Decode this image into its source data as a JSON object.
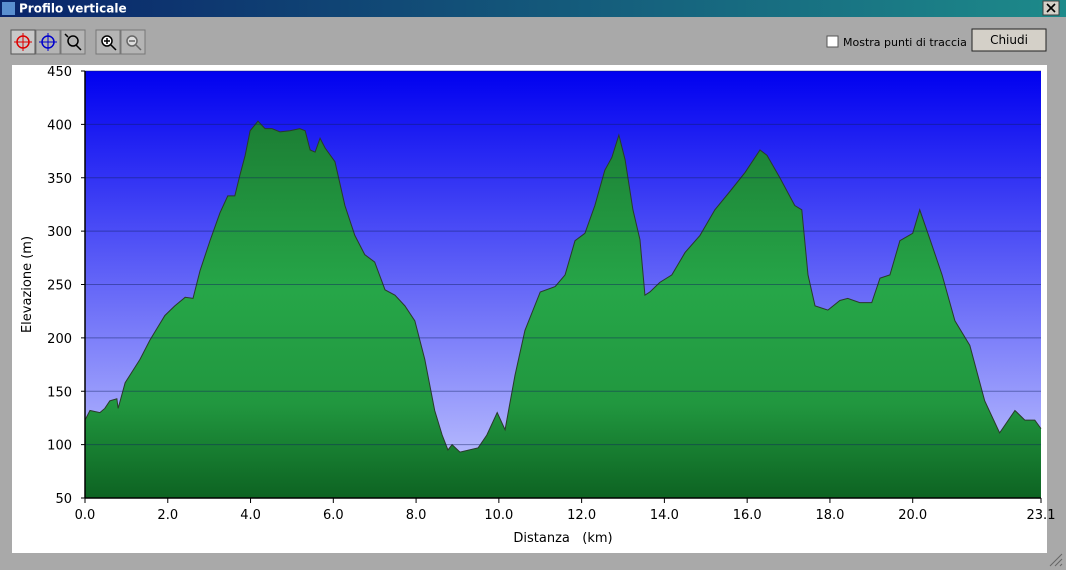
{
  "window": {
    "title": "Profilo verticale",
    "checkbox_label": "Mostra punti di traccia",
    "button_label": "Chiudi"
  },
  "chart_data": {
    "type": "area",
    "xlabel": "Distanza   (km)",
    "ylabel": "Elevazione (m)",
    "x": [
      0,
      0.12,
      0.36,
      0.48,
      0.6,
      0.77,
      0.8,
      0.97,
      1.33,
      1.57,
      1.93,
      2.17,
      2.42,
      2.61,
      2.78,
      3.02,
      3.26,
      3.45,
      3.62,
      3.74,
      3.87,
      3.99,
      4.18,
      4.35,
      4.52,
      4.71,
      4.95,
      5.19,
      5.32,
      5.44,
      5.56,
      5.68,
      5.8,
      6.04,
      6.28,
      6.52,
      6.76,
      7.0,
      7.25,
      7.49,
      7.73,
      7.97,
      8.21,
      8.45,
      8.63,
      8.77,
      8.87,
      9.06,
      9.5,
      9.71,
      9.96,
      10.15,
      10.39,
      10.63,
      11.0,
      11.36,
      11.6,
      11.84,
      12.08,
      12.32,
      12.56,
      12.73,
      12.9,
      13.05,
      13.24,
      13.41,
      13.53,
      13.65,
      13.89,
      14.18,
      14.5,
      14.86,
      15.22,
      15.58,
      15.95,
      16.31,
      16.48,
      16.79,
      17.15,
      17.32,
      17.47,
      17.64,
      17.95,
      18.24,
      18.43,
      18.72,
      19.01,
      19.21,
      19.45,
      19.69,
      20.0,
      20.17,
      20.42,
      20.71,
      21.02,
      21.38,
      21.74,
      22.1,
      22.47,
      22.71,
      22.95,
      23.1
    ],
    "values": [
      123,
      132,
      130,
      134,
      141,
      143,
      134,
      158,
      180,
      198,
      221,
      230,
      238,
      237,
      263,
      291,
      317,
      333,
      333,
      352,
      371,
      394,
      403,
      396,
      396,
      393,
      394,
      396,
      394,
      376,
      374,
      387,
      378,
      365,
      324,
      296,
      278,
      271,
      245,
      240,
      230,
      216,
      180,
      132,
      109,
      95,
      100,
      93,
      97,
      109,
      130,
      114,
      165,
      207,
      243,
      248,
      259,
      291,
      298,
      324,
      357,
      369,
      390,
      367,
      320,
      292,
      240,
      243,
      252,
      259,
      280,
      296,
      320,
      337,
      355,
      376,
      371,
      350,
      324,
      320,
      259,
      230,
      226,
      235,
      237,
      233,
      233,
      256,
      259,
      291,
      298,
      320,
      292,
      259,
      216,
      193,
      141,
      111,
      132,
      123,
      123,
      115
    ],
    "color": "#22a040",
    "xlim": [
      0,
      23.1
    ],
    "xticks": [
      {
        "value": 0,
        "label": "0.0"
      },
      {
        "value": 2,
        "label": "2.0"
      },
      {
        "value": 4,
        "label": "4.0"
      },
      {
        "value": 6,
        "label": "6.0"
      },
      {
        "value": 8,
        "label": "8.0"
      },
      {
        "value": 10,
        "label": "10.0"
      },
      {
        "value": 12,
        "label": "12.0"
      },
      {
        "value": 14,
        "label": "14.0"
      },
      {
        "value": 16,
        "label": "16.0"
      },
      {
        "value": 18,
        "label": "18.0"
      },
      {
        "value": 20,
        "label": "20.0"
      },
      23.1
    ],
    "ylim": [
      50,
      450
    ],
    "yticks": [
      50,
      100,
      150,
      200,
      250,
      300,
      350,
      400,
      450
    ],
    "grid": true
  }
}
